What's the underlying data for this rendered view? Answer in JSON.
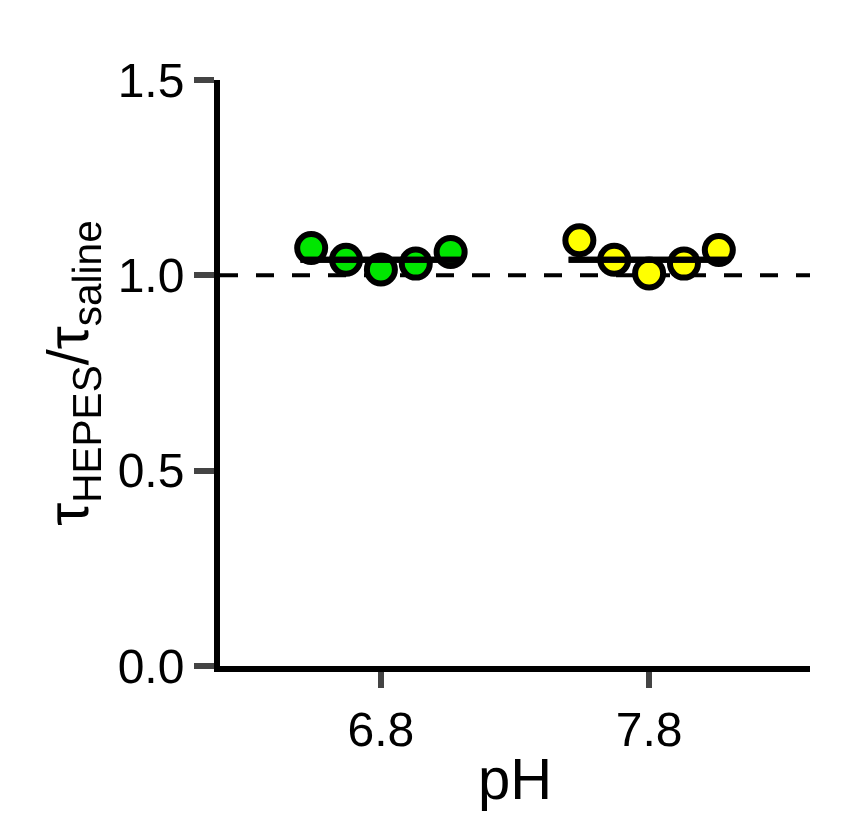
{
  "chart_data": {
    "type": "scatter",
    "categories": [
      "6.8",
      "7.8"
    ],
    "xlabel": "pH",
    "ylabel": "τ$_{HEPES}$/τ$_{saline}$",
    "ylim": [
      0,
      1.5
    ],
    "yticks": [
      {
        "value": 0,
        "label": "0.0"
      },
      {
        "value": 0.5,
        "label": "0.5"
      },
      {
        "value": 1,
        "label": "1.0"
      },
      {
        "value": 1.5,
        "label": "1.5"
      }
    ],
    "marker": "circle",
    "series": [
      {
        "color": "#00e600",
        "x": [
          "6.8",
          "6.8",
          "6.8",
          "6.8",
          "6.8"
        ],
        "values": [
          1.07,
          1.04,
          1.015,
          1.03,
          1.06
        ]
      },
      {
        "color": "#ffff00",
        "x": [
          "7.8",
          "7.8",
          "7.8",
          "7.8",
          "7.8"
        ],
        "values": [
          1.09,
          1.04,
          1.005,
          1.03,
          1.065
        ]
      },
      {
        "type": "box",
        "color": "#000000",
        "boxes": [
          {
            "low": 1.04,
            "q1": 1.04,
            "median": 1.04,
            "q3": 1.04,
            "high": 1.04
          },
          {
            "low": 1.04,
            "q1": 1.04,
            "median": 1.04,
            "q3": 1.04,
            "high": 1.04
          }
        ]
      }
    ],
    "ref_lines": [
      {
        "axis": "y",
        "value": 1,
        "color": "#000000",
        "line_style": "dashed"
      }
    ]
  }
}
